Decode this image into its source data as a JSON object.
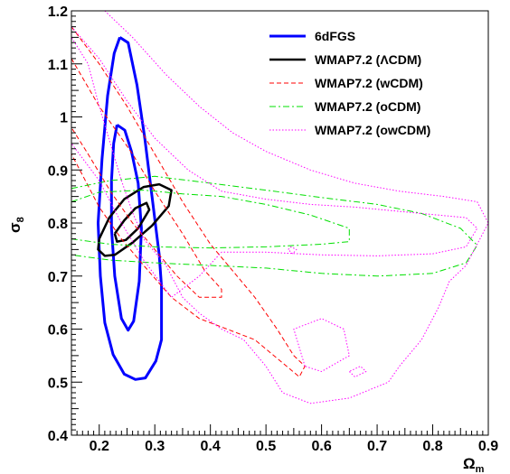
{
  "chart_data": {
    "type": "line",
    "title": "",
    "xlabel": "Ω",
    "xlabel_sub": "m",
    "ylabel": "σ",
    "ylabel_sub": "8",
    "xlim": [
      0.15,
      0.9
    ],
    "ylim": [
      0.4,
      1.2
    ],
    "x_ticks": [
      0.2,
      0.3,
      0.4,
      0.5,
      0.6,
      0.7,
      0.8,
      0.9
    ],
    "x_tick_labels": [
      "0.2",
      "0.3",
      "0.4",
      "0.5",
      "0.6",
      "0.7",
      "0.8",
      "0.9"
    ],
    "y_ticks": [
      0.4,
      0.5,
      0.6,
      0.7,
      0.8,
      0.9,
      1.0,
      1.1,
      1.2
    ],
    "y_tick_labels": [
      "0.4",
      "0.5",
      "0.6",
      "0.7",
      "0.8",
      "0.9",
      "1",
      "1.1",
      "1.2"
    ],
    "grid": false,
    "legend_position": "top-right",
    "series": [
      {
        "name": "6dFGS",
        "color": "#0000ff",
        "style": "solid",
        "width": 3,
        "contours": [
          [
            [
              0.232,
              0.985
            ],
            [
              0.246,
              0.975
            ],
            [
              0.258,
              0.935
            ],
            [
              0.27,
              0.875
            ],
            [
              0.276,
              0.79
            ],
            [
              0.272,
              0.69
            ],
            [
              0.262,
              0.615
            ],
            [
              0.252,
              0.598
            ],
            [
              0.24,
              0.62
            ],
            [
              0.228,
              0.7
            ],
            [
              0.222,
              0.79
            ],
            [
              0.222,
              0.88
            ],
            [
              0.226,
              0.95
            ],
            [
              0.232,
              0.985
            ]
          ],
          [
            [
              0.237,
              1.15
            ],
            [
              0.252,
              1.14
            ],
            [
              0.268,
              1.06
            ],
            [
              0.282,
              0.96
            ],
            [
              0.295,
              0.85
            ],
            [
              0.308,
              0.74
            ],
            [
              0.312,
              0.68
            ],
            [
              0.312,
              0.58
            ],
            [
              0.302,
              0.54
            ],
            [
              0.283,
              0.508
            ],
            [
              0.265,
              0.505
            ],
            [
              0.245,
              0.515
            ],
            [
              0.225,
              0.552
            ],
            [
              0.21,
              0.612
            ],
            [
              0.202,
              0.7
            ],
            [
              0.198,
              0.8
            ],
            [
              0.205,
              0.92
            ],
            [
              0.215,
              1.04
            ],
            [
              0.227,
              1.12
            ],
            [
              0.237,
              1.15
            ]
          ]
        ]
      },
      {
        "name": "WMAP7.2 (ΛCDM)",
        "color": "#000000",
        "style": "solid",
        "width": 2.5,
        "contours": [
          [
            [
              0.228,
              0.78
            ],
            [
              0.245,
              0.805
            ],
            [
              0.265,
              0.828
            ],
            [
              0.285,
              0.838
            ],
            [
              0.29,
              0.825
            ],
            [
              0.27,
              0.79
            ],
            [
              0.248,
              0.768
            ],
            [
              0.232,
              0.765
            ],
            [
              0.228,
              0.78
            ]
          ],
          [
            [
              0.2,
              0.77
            ],
            [
              0.218,
              0.81
            ],
            [
              0.245,
              0.845
            ],
            [
              0.28,
              0.868
            ],
            [
              0.308,
              0.873
            ],
            [
              0.33,
              0.862
            ],
            [
              0.325,
              0.832
            ],
            [
              0.295,
              0.795
            ],
            [
              0.26,
              0.763
            ],
            [
              0.228,
              0.74
            ],
            [
              0.21,
              0.738
            ],
            [
              0.198,
              0.75
            ],
            [
              0.2,
              0.77
            ]
          ]
        ]
      },
      {
        "name": "WMAP7.2 (wCDM)",
        "color": "#ff0000",
        "style": "dashed",
        "width": 1,
        "contours": [
          [
            [
              0.15,
              1.11
            ],
            [
              0.2,
              1.02
            ],
            [
              0.26,
              0.93
            ],
            [
              0.3,
              0.86
            ],
            [
              0.35,
              0.78
            ],
            [
              0.39,
              0.71
            ],
            [
              0.42,
              0.675
            ],
            [
              0.42,
              0.66
            ],
            [
              0.38,
              0.66
            ],
            [
              0.34,
              0.7
            ],
            [
              0.3,
              0.75
            ],
            [
              0.26,
              0.8
            ],
            [
              0.22,
              0.86
            ],
            [
              0.18,
              0.93
            ],
            [
              0.15,
              0.98
            ]
          ],
          [
            [
              0.15,
              1.17
            ],
            [
              0.2,
              1.1
            ],
            [
              0.25,
              1.02
            ],
            [
              0.3,
              0.93
            ],
            [
              0.35,
              0.84
            ],
            [
              0.4,
              0.76
            ],
            [
              0.44,
              0.71
            ],
            [
              0.48,
              0.66
            ],
            [
              0.52,
              0.6
            ],
            [
              0.55,
              0.55
            ],
            [
              0.57,
              0.53
            ],
            [
              0.56,
              0.51
            ],
            [
              0.52,
              0.545
            ],
            [
              0.48,
              0.58
            ],
            [
              0.43,
              0.6
            ],
            [
              0.38,
              0.62
            ],
            [
              0.33,
              0.66
            ],
            [
              0.28,
              0.72
            ],
            [
              0.24,
              0.77
            ],
            [
              0.2,
              0.83
            ],
            [
              0.17,
              0.89
            ],
            [
              0.15,
              0.93
            ]
          ]
        ]
      },
      {
        "name": "WMAP7.2 (oCDM)",
        "color": "#00e000",
        "style": "dashdot",
        "width": 1,
        "contours": [
          [
            [
              0.15,
              0.84
            ],
            [
              0.2,
              0.858
            ],
            [
              0.28,
              0.862
            ],
            [
              0.35,
              0.855
            ],
            [
              0.42,
              0.85
            ],
            [
              0.5,
              0.835
            ],
            [
              0.58,
              0.815
            ],
            [
              0.65,
              0.79
            ],
            [
              0.65,
              0.765
            ],
            [
              0.6,
              0.76
            ],
            [
              0.5,
              0.755
            ],
            [
              0.4,
              0.753
            ],
            [
              0.3,
              0.755
            ],
            [
              0.22,
              0.76
            ],
            [
              0.15,
              0.77
            ]
          ],
          [
            [
              0.15,
              0.865
            ],
            [
              0.22,
              0.88
            ],
            [
              0.3,
              0.888
            ],
            [
              0.4,
              0.875
            ],
            [
              0.5,
              0.862
            ],
            [
              0.6,
              0.848
            ],
            [
              0.7,
              0.835
            ],
            [
              0.78,
              0.818
            ],
            [
              0.85,
              0.79
            ],
            [
              0.88,
              0.758
            ],
            [
              0.86,
              0.725
            ],
            [
              0.8,
              0.705
            ],
            [
              0.7,
              0.7
            ],
            [
              0.6,
              0.705
            ],
            [
              0.5,
              0.715
            ],
            [
              0.4,
              0.72
            ],
            [
              0.3,
              0.725
            ],
            [
              0.22,
              0.73
            ],
            [
              0.15,
              0.74
            ]
          ]
        ]
      },
      {
        "name": "WMAP7.2 (owCDM)",
        "color": "#ff00ff",
        "style": "dotted",
        "width": 1,
        "contours": [
          [
            [
              0.15,
              1.17
            ],
            [
              0.2,
              1.11
            ],
            [
              0.25,
              1.03
            ],
            [
              0.3,
              0.96
            ],
            [
              0.36,
              0.9
            ],
            [
              0.42,
              0.86
            ],
            [
              0.5,
              0.845
            ],
            [
              0.58,
              0.835
            ],
            [
              0.66,
              0.83
            ],
            [
              0.76,
              0.82
            ],
            [
              0.86,
              0.81
            ],
            [
              0.88,
              0.79
            ],
            [
              0.86,
              0.755
            ],
            [
              0.8,
              0.742
            ],
            [
              0.7,
              0.738
            ],
            [
              0.6,
              0.74
            ],
            [
              0.5,
              0.745
            ],
            [
              0.42,
              0.745
            ],
            [
              0.38,
              0.7
            ],
            [
              0.33,
              0.66
            ],
            [
              0.28,
              0.73
            ],
            [
              0.24,
              0.8
            ],
            [
              0.2,
              0.88
            ],
            [
              0.15,
              0.95
            ]
          ],
          [
            [
              0.21,
              1.2
            ],
            [
              0.26,
              1.15
            ],
            [
              0.32,
              1.08
            ],
            [
              0.38,
              1.02
            ],
            [
              0.44,
              0.97
            ],
            [
              0.5,
              0.935
            ],
            [
              0.58,
              0.9
            ],
            [
              0.66,
              0.875
            ],
            [
              0.74,
              0.86
            ],
            [
              0.82,
              0.85
            ],
            [
              0.88,
              0.84
            ],
            [
              0.9,
              0.8
            ],
            [
              0.88,
              0.76
            ],
            [
              0.86,
              0.72
            ],
            [
              0.83,
              0.69
            ],
            [
              0.81,
              0.64
            ],
            [
              0.78,
              0.58
            ],
            [
              0.74,
              0.53
            ],
            [
              0.72,
              0.5
            ],
            [
              0.65,
              0.47
            ],
            [
              0.58,
              0.46
            ],
            [
              0.53,
              0.48
            ],
            [
              0.5,
              0.53
            ],
            [
              0.46,
              0.58
            ],
            [
              0.42,
              0.6
            ],
            [
              0.38,
              0.63
            ],
            [
              0.35,
              0.66
            ],
            [
              0.32,
              0.72
            ],
            [
              0.28,
              0.77
            ],
            [
              0.26,
              0.82
            ],
            [
              0.24,
              0.88
            ],
            [
              0.22,
              0.95
            ],
            [
              0.2,
              1.02
            ],
            [
              0.18,
              1.1
            ],
            [
              0.15,
              1.15
            ]
          ],
          [
            [
              0.57,
              0.53
            ],
            [
              0.55,
              0.6
            ],
            [
              0.6,
              0.62
            ],
            [
              0.64,
              0.6
            ],
            [
              0.65,
              0.55
            ],
            [
              0.6,
              0.52
            ],
            [
              0.57,
              0.53
            ]
          ],
          [
            [
              0.54,
              0.75
            ],
            [
              0.545,
              0.755
            ],
            [
              0.555,
              0.75
            ],
            [
              0.548,
              0.742
            ],
            [
              0.54,
              0.75
            ]
          ],
          [
            [
              0.65,
              0.52
            ],
            [
              0.66,
              0.51
            ],
            [
              0.68,
              0.52
            ],
            [
              0.67,
              0.53
            ],
            [
              0.65,
              0.52
            ]
          ]
        ]
      }
    ]
  }
}
